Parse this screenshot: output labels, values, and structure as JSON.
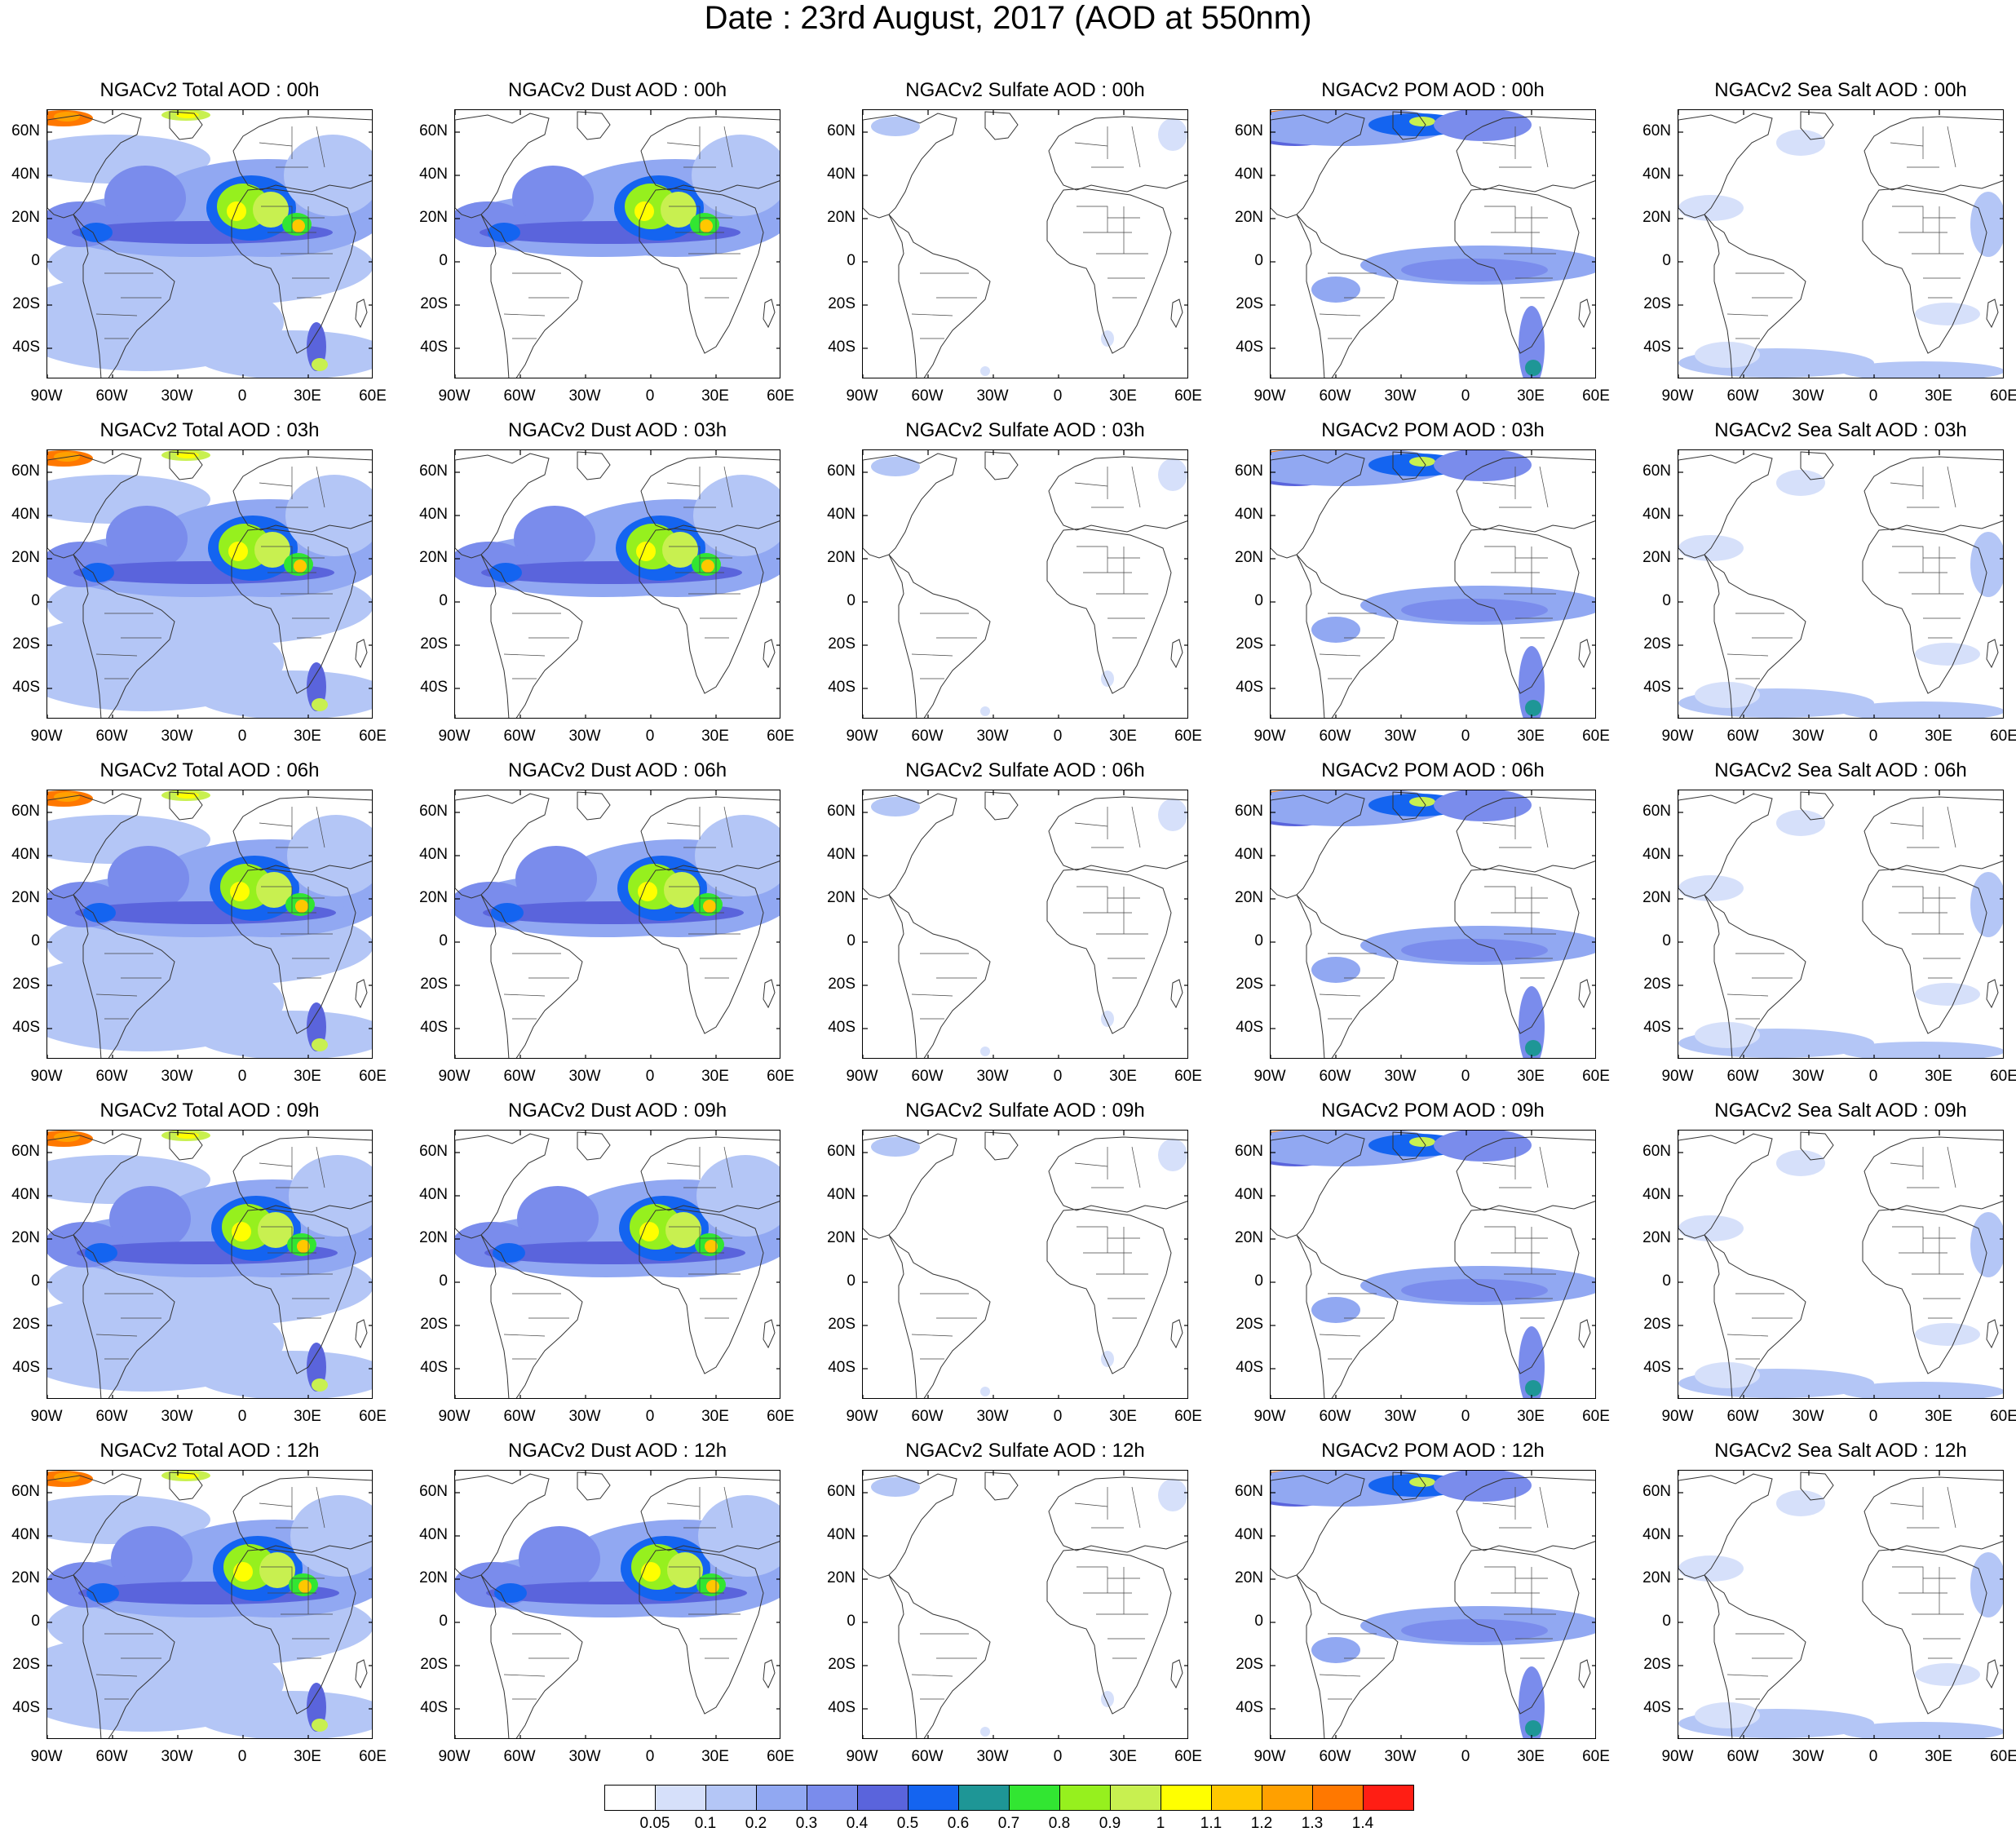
{
  "title": "Date : 23rd August, 2017 (AOD at 550nm)",
  "panel_titles": [
    [
      "NGACv2 Total AOD : 00h",
      "NGACv2 Dust AOD : 00h",
      "NGACv2 Sulfate AOD : 00h",
      "NGACv2 POM AOD : 00h",
      "NGACv2 Sea Salt AOD : 00h"
    ],
    [
      "NGACv2 Total AOD : 03h",
      "NGACv2 Dust AOD : 03h",
      "NGACv2 Sulfate AOD : 03h",
      "NGACv2 POM AOD : 03h",
      "NGACv2 Sea Salt AOD : 03h"
    ],
    [
      "NGACv2 Total AOD : 06h",
      "NGACv2 Dust AOD : 06h",
      "NGACv2 Sulfate AOD : 06h",
      "NGACv2 POM AOD : 06h",
      "NGACv2 Sea Salt AOD : 06h"
    ],
    [
      "NGACv2 Total AOD : 09h",
      "NGACv2 Dust AOD : 09h",
      "NGACv2 Sulfate AOD : 09h",
      "NGACv2 POM AOD : 09h",
      "NGACv2 Sea Salt  AOD : 09h"
    ],
    [
      "NGACv2 Total AOD  : 12h",
      "NGACv2 Dust AOD : 12h",
      "NGACv2 Sulfate AOD : 12h",
      "NGACv2 POM  AOD : 12h",
      "NGACv2 Sea Salt  AOD : 12h"
    ]
  ],
  "lat_labels": [
    "60N",
    "40N",
    "20N",
    "0",
    "20S",
    "40S"
  ],
  "lon_labels": [
    "90W",
    "60W",
    "30W",
    "0",
    "30E",
    "60E"
  ],
  "colorbar": {
    "labels": [
      "0.05",
      "0.1",
      "0.2",
      "0.3",
      "0.4",
      "0.5",
      "0.6",
      "0.7",
      "0.8",
      "0.9",
      "1",
      "1.1",
      "1.2",
      "1.3",
      "1.4"
    ],
    "colors": [
      "#ffffff",
      "#d6e0fa",
      "#b4c6f6",
      "#91a8f2",
      "#7a8cec",
      "#5a64dc",
      "#1464f0",
      "#1e9696",
      "#32e632",
      "#96f01e",
      "#c8f050",
      "#ffff00",
      "#ffc800",
      "#ffa000",
      "#ff7800",
      "#ff1e14"
    ]
  }
}
